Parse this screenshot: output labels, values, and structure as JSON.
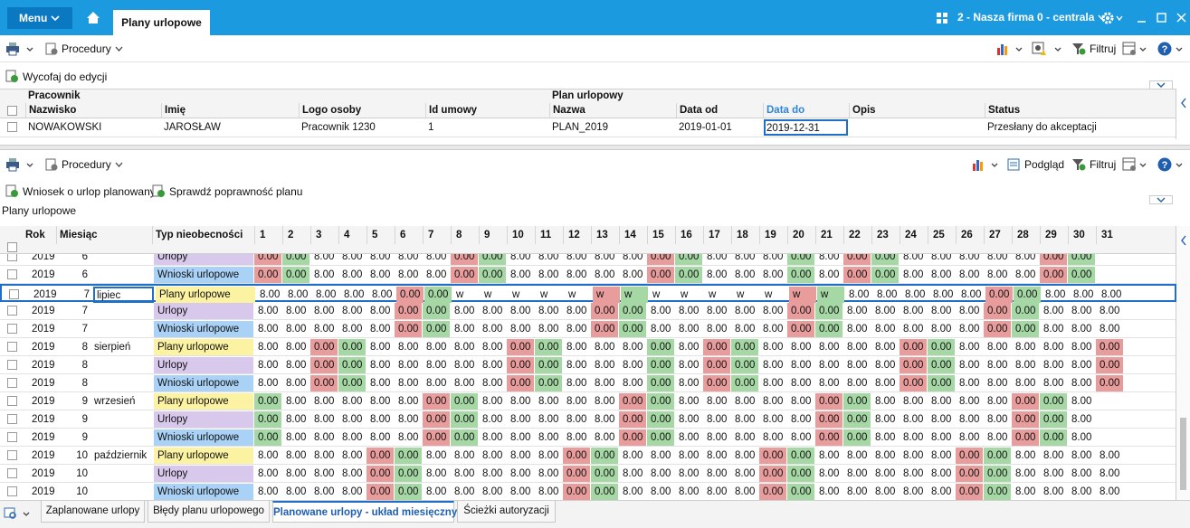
{
  "top_bar": {
    "menu": "Menu",
    "tab": "Plany urlopowe",
    "company": "2 - Nasza firma 0 - centrala"
  },
  "toolbar1": {
    "procedures": "Procedury",
    "filter": "Filtruj"
  },
  "action1": "Wycofaj do edycji",
  "upper_grid": {
    "groups": [
      "Pracownik",
      "Plan urlopowy"
    ],
    "columns": [
      "Nazwisko",
      "Imię",
      "Logo osoby",
      "Id umowy",
      "Nazwa",
      "Data od",
      "Data do",
      "Opis",
      "Status"
    ],
    "rows": [
      [
        "NOWAKOWSKI",
        "JAROSŁAW",
        "Pracownik  1230",
        "1",
        "PLAN_2019",
        "2019-01-01",
        "2019-12-31",
        null,
        "Przesłany do akceptacji"
      ]
    ]
  },
  "toolbar2": {
    "procedures": "Procedury",
    "preview": "Podgląd",
    "filter": "Filtruj"
  },
  "actions2": [
    "Wniosek o urlop planowany",
    "Sprawdź poprawność planu"
  ],
  "section_label": "Plany urlopowe",
  "lower_grid": {
    "columns": [
      "Rok",
      "Miesiąc",
      "Typ nieobecności"
    ],
    "day_columns": [
      "1",
      "2",
      "3",
      "4",
      "5",
      "6",
      "7",
      "8",
      "9",
      "10",
      "11",
      "12",
      "13",
      "14",
      "15",
      "16",
      "17",
      "18",
      "19",
      "20",
      "21",
      "22",
      "23",
      "24",
      "25",
      "26",
      "27",
      "28",
      "29",
      "30",
      "31"
    ],
    "cell_colors": {
      "r": "#e89c9c",
      "g": "#a5d8a5"
    },
    "selected_row": 2,
    "rows": [
      {
        "year": "2019",
        "month": "6",
        "type": "Urlopy",
        "type_color": "#d8c8ec",
        "colors": "rg-----rg-----rg---g-rg-----rg",
        "days": [
          "0.00",
          "0.00",
          "8.00",
          "8.00",
          "8.00",
          "8.00",
          "8.00",
          "0.00",
          "0.00",
          "8.00",
          "8.00",
          "8.00",
          "8.00",
          "8.00",
          "0.00",
          "0.00",
          "8.00",
          "8.00",
          "8.00",
          "0.00",
          "8.00",
          "0.00",
          "0.00",
          "8.00",
          "8.00",
          "8.00",
          "8.00",
          "8.00",
          "0.00",
          "0.00"
        ]
      },
      {
        "year": "2019",
        "month": "6",
        "type": "Wnioski urlopowe",
        "type_color": "#a9d2f6",
        "colors": "rg-----rg-----rg---g-rg-----rg",
        "days": [
          "0.00",
          "0.00",
          "8.00",
          "8.00",
          "8.00",
          "8.00",
          "8.00",
          "0.00",
          "0.00",
          "8.00",
          "8.00",
          "8.00",
          "8.00",
          "8.00",
          "0.00",
          "0.00",
          "8.00",
          "8.00",
          "8.00",
          "0.00",
          "8.00",
          "0.00",
          "0.00",
          "8.00",
          "8.00",
          "8.00",
          "8.00",
          "8.00",
          "0.00",
          "0.00"
        ]
      },
      {
        "year": "2019",
        "month": "7",
        "month_name": "lipiec",
        "type": "Plany urlopowe",
        "type_color": "#fbf2a2",
        "colors": "-----rg-----rg-----rg-----rg---",
        "days": [
          "8.00",
          "8.00",
          "8.00",
          "8.00",
          "8.00",
          "0.00",
          "0.00",
          "w",
          "w",
          "w",
          "w",
          "w",
          "w",
          "w",
          "w",
          "w",
          "w",
          "w",
          "w",
          "w",
          "w",
          "8.00",
          "8.00",
          "8.00",
          "8.00",
          "8.00",
          "0.00",
          "0.00",
          "8.00",
          "8.00",
          "8.00"
        ]
      },
      {
        "year": "2019",
        "month": "7",
        "type": "Urlopy",
        "type_color": "#d8c8ec",
        "colors": "-----rg-----rg-----rg-----rg---",
        "days": [
          "8.00",
          "8.00",
          "8.00",
          "8.00",
          "8.00",
          "0.00",
          "0.00",
          "8.00",
          "8.00",
          "8.00",
          "8.00",
          "8.00",
          "0.00",
          "0.00",
          "8.00",
          "8.00",
          "8.00",
          "8.00",
          "8.00",
          "0.00",
          "0.00",
          "8.00",
          "8.00",
          "8.00",
          "8.00",
          "8.00",
          "0.00",
          "0.00",
          "8.00",
          "8.00",
          "8.00"
        ]
      },
      {
        "year": "2019",
        "month": "7",
        "type": "Wnioski urlopowe",
        "type_color": "#a9d2f6",
        "colors": "-----rg-----rg-----rg-----rg---",
        "days": [
          "8.00",
          "8.00",
          "8.00",
          "8.00",
          "8.00",
          "0.00",
          "0.00",
          "8.00",
          "8.00",
          "8.00",
          "8.00",
          "8.00",
          "0.00",
          "0.00",
          "8.00",
          "8.00",
          "8.00",
          "8.00",
          "8.00",
          "0.00",
          "0.00",
          "8.00",
          "8.00",
          "8.00",
          "8.00",
          "8.00",
          "0.00",
          "0.00",
          "8.00",
          "8.00",
          "8.00"
        ]
      },
      {
        "year": "2019",
        "month": "8",
        "month_name": "sierpień",
        "type": "Plany urlopowe",
        "type_color": "#fbf2a2",
        "colors": "--rg-----rg---g-rg-----rg-----r",
        "days": [
          "8.00",
          "8.00",
          "0.00",
          "0.00",
          "8.00",
          "8.00",
          "8.00",
          "8.00",
          "8.00",
          "0.00",
          "0.00",
          "8.00",
          "8.00",
          "8.00",
          "0.00",
          "8.00",
          "0.00",
          "0.00",
          "8.00",
          "8.00",
          "8.00",
          "8.00",
          "8.00",
          "0.00",
          "0.00",
          "8.00",
          "8.00",
          "8.00",
          "8.00",
          "8.00",
          "0.00"
        ]
      },
      {
        "year": "2019",
        "month": "8",
        "type": "Urlopy",
        "type_color": "#d8c8ec",
        "colors": "--rg-----rg---g-rg-----rg-----r",
        "days": [
          "8.00",
          "8.00",
          "0.00",
          "0.00",
          "8.00",
          "8.00",
          "8.00",
          "8.00",
          "8.00",
          "0.00",
          "0.00",
          "8.00",
          "8.00",
          "8.00",
          "0.00",
          "8.00",
          "0.00",
          "0.00",
          "8.00",
          "8.00",
          "8.00",
          "8.00",
          "8.00",
          "0.00",
          "0.00",
          "8.00",
          "8.00",
          "8.00",
          "8.00",
          "8.00",
          "0.00"
        ]
      },
      {
        "year": "2019",
        "month": "8",
        "type": "Wnioski urlopowe",
        "type_color": "#a9d2f6",
        "colors": "--rg-----rg---g-rg-----rg-----r",
        "days": [
          "8.00",
          "8.00",
          "0.00",
          "0.00",
          "8.00",
          "8.00",
          "8.00",
          "8.00",
          "8.00",
          "0.00",
          "0.00",
          "8.00",
          "8.00",
          "8.00",
          "0.00",
          "8.00",
          "0.00",
          "0.00",
          "8.00",
          "8.00",
          "8.00",
          "8.00",
          "8.00",
          "0.00",
          "0.00",
          "8.00",
          "8.00",
          "8.00",
          "8.00",
          "8.00",
          "0.00"
        ]
      },
      {
        "year": "2019",
        "month": "9",
        "month_name": "wrzesień",
        "type": "Plany urlopowe",
        "type_color": "#fbf2a2",
        "colors": "g-----rg-----rg-----rg-----rg-",
        "days": [
          "0.00",
          "8.00",
          "8.00",
          "8.00",
          "8.00",
          "8.00",
          "0.00",
          "0.00",
          "8.00",
          "8.00",
          "8.00",
          "8.00",
          "8.00",
          "0.00",
          "0.00",
          "8.00",
          "8.00",
          "8.00",
          "8.00",
          "8.00",
          "0.00",
          "0.00",
          "8.00",
          "8.00",
          "8.00",
          "8.00",
          "8.00",
          "0.00",
          "0.00",
          "8.00"
        ]
      },
      {
        "year": "2019",
        "month": "9",
        "type": "Urlopy",
        "type_color": "#d8c8ec",
        "colors": "g-----rg-----rg-----rg-----rg-",
        "days": [
          "0.00",
          "8.00",
          "8.00",
          "8.00",
          "8.00",
          "8.00",
          "0.00",
          "0.00",
          "8.00",
          "8.00",
          "8.00",
          "8.00",
          "8.00",
          "0.00",
          "0.00",
          "8.00",
          "8.00",
          "8.00",
          "8.00",
          "8.00",
          "0.00",
          "0.00",
          "8.00",
          "8.00",
          "8.00",
          "8.00",
          "8.00",
          "0.00",
          "0.00",
          "8.00"
        ]
      },
      {
        "year": "2019",
        "month": "9",
        "type": "Wnioski urlopowe",
        "type_color": "#a9d2f6",
        "colors": "g-----rg-----rg-----rg-----rg-",
        "days": [
          "0.00",
          "8.00",
          "8.00",
          "8.00",
          "8.00",
          "8.00",
          "0.00",
          "0.00",
          "8.00",
          "8.00",
          "8.00",
          "8.00",
          "8.00",
          "0.00",
          "0.00",
          "8.00",
          "8.00",
          "8.00",
          "8.00",
          "8.00",
          "0.00",
          "0.00",
          "8.00",
          "8.00",
          "8.00",
          "8.00",
          "8.00",
          "0.00",
          "0.00",
          "8.00"
        ]
      },
      {
        "year": "2019",
        "month": "10",
        "month_name": "październik",
        "type": "Plany urlopowe",
        "type_color": "#fbf2a2",
        "colors": "----rg-----rg-----rg-----rg----",
        "days": [
          "8.00",
          "8.00",
          "8.00",
          "8.00",
          "0.00",
          "0.00",
          "8.00",
          "8.00",
          "8.00",
          "8.00",
          "8.00",
          "0.00",
          "0.00",
          "8.00",
          "8.00",
          "8.00",
          "8.00",
          "8.00",
          "0.00",
          "0.00",
          "8.00",
          "8.00",
          "8.00",
          "8.00",
          "8.00",
          "0.00",
          "0.00",
          "8.00",
          "8.00",
          "8.00",
          "8.00"
        ]
      },
      {
        "year": "2019",
        "month": "10",
        "type": "Urlopy",
        "type_color": "#d8c8ec",
        "colors": "----rg-----rg-----rg-----rg----",
        "days": [
          "8.00",
          "8.00",
          "8.00",
          "8.00",
          "0.00",
          "0.00",
          "8.00",
          "8.00",
          "8.00",
          "8.00",
          "8.00",
          "0.00",
          "0.00",
          "8.00",
          "8.00",
          "8.00",
          "8.00",
          "8.00",
          "0.00",
          "0.00",
          "8.00",
          "8.00",
          "8.00",
          "8.00",
          "8.00",
          "0.00",
          "0.00",
          "8.00",
          "8.00",
          "8.00",
          "8.00"
        ]
      },
      {
        "year": "2019",
        "month": "10",
        "type": "Wnioski urlopowe",
        "type_color": "#a9d2f6",
        "colors": "----rg-----rg-----rg-----rg----",
        "days": [
          "8.00",
          "8.00",
          "8.00",
          "8.00",
          "0.00",
          "0.00",
          "8.00",
          "8.00",
          "8.00",
          "8.00",
          "8.00",
          "0.00",
          "0.00",
          "8.00",
          "8.00",
          "8.00",
          "8.00",
          "8.00",
          "0.00",
          "0.00",
          "8.00",
          "8.00",
          "8.00",
          "8.00",
          "8.00",
          "0.00",
          "0.00",
          "8.00",
          "8.00",
          "8.00",
          "8.00"
        ]
      }
    ]
  },
  "bottom_tabs": {
    "tabs": [
      "Zaplanowane urlopy",
      "Błędy planu urlopowego",
      "Planowane urlopy - układ miesięczny",
      "Ścieżki autoryzacji"
    ],
    "active": 2
  }
}
